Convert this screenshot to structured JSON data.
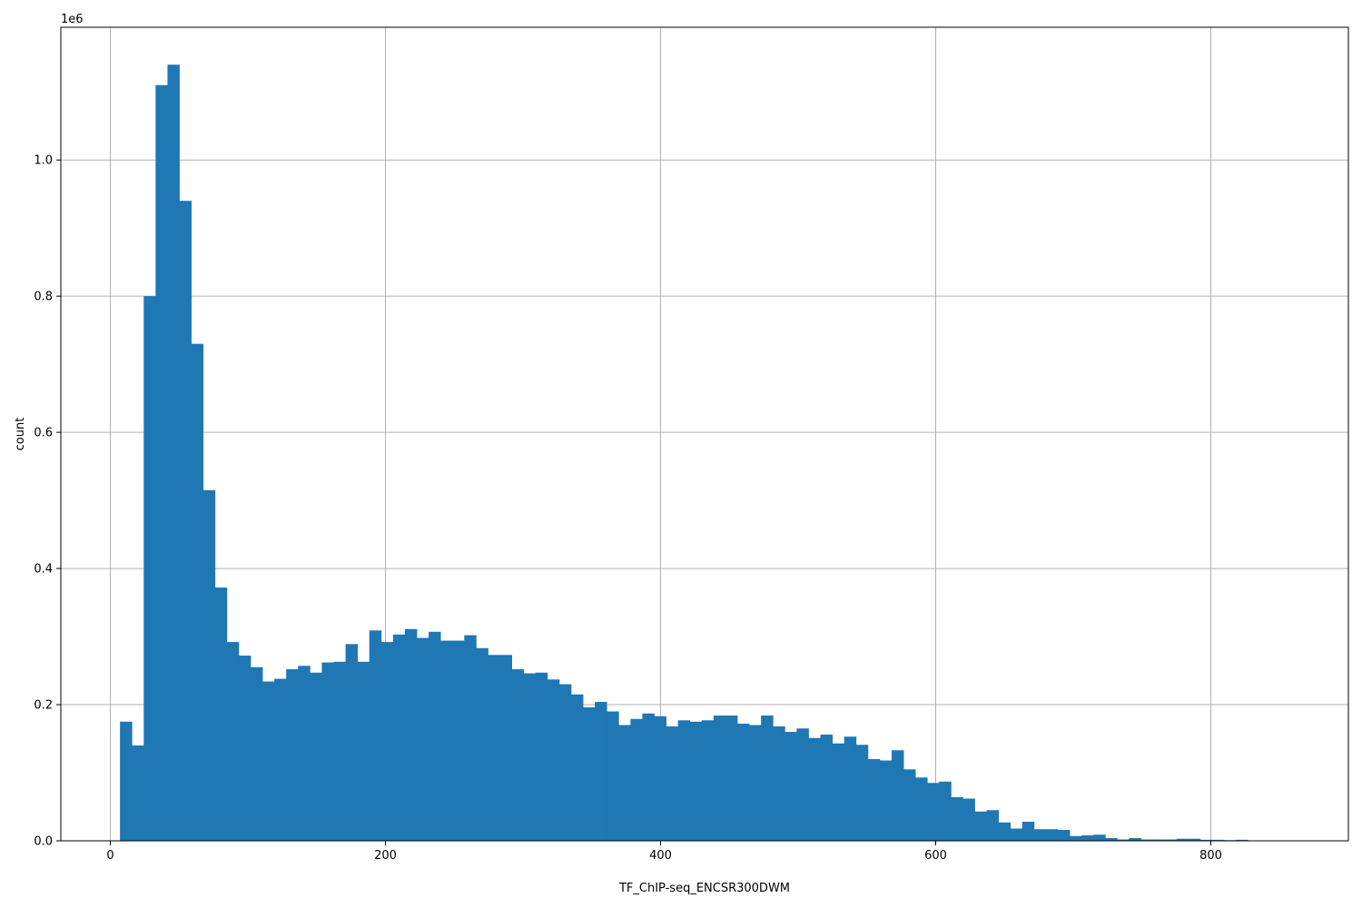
{
  "chart_data": {
    "type": "bar",
    "title": "",
    "xlabel": "TF_ChIP-seq_ENCSR300DWM",
    "ylabel": "count",
    "y_offset_label": "1e6",
    "xlim": [
      -36,
      900
    ],
    "ylim": [
      0,
      1195000
    ],
    "grid": true,
    "bar_color": "#1f77b4",
    "grid_color": "#b0b0b0",
    "x_ticks": [
      0,
      200,
      400,
      600,
      800
    ],
    "x_tick_labels": [
      "0",
      "200",
      "400",
      "600",
      "800"
    ],
    "y_ticks": [
      0,
      200000,
      400000,
      600000,
      800000,
      1000000
    ],
    "y_tick_labels": [
      "0.0",
      "0.2",
      "0.4",
      "0.6",
      "0.8",
      "1.0"
    ],
    "bin_start": 7,
    "bin_width": 8.63,
    "values": [
      175000,
      140000,
      800000,
      1110000,
      1140000,
      940000,
      730000,
      515000,
      372000,
      292000,
      272000,
      255000,
      234000,
      238000,
      252000,
      257000,
      247000,
      262000,
      263000,
      289000,
      263000,
      309000,
      292000,
      303000,
      311000,
      298000,
      307000,
      294000,
      294000,
      302000,
      283000,
      273000,
      273000,
      252000,
      246000,
      247000,
      237000,
      230000,
      215000,
      196000,
      204000,
      190000,
      170000,
      179000,
      187000,
      183000,
      168000,
      177000,
      175000,
      177000,
      184000,
      184000,
      172000,
      170000,
      184000,
      168000,
      160000,
      165000,
      151000,
      156000,
      143000,
      153000,
      141000,
      120000,
      118000,
      133000,
      105000,
      93000,
      85000,
      87000,
      64000,
      62000,
      43000,
      45000,
      27000,
      18000,
      28000,
      17000,
      17000,
      16000,
      7000,
      8000,
      9000,
      4000,
      2000,
      4000,
      2000,
      2000,
      2000,
      3000,
      3000,
      1500,
      1500,
      1000,
      1500,
      500,
      300,
      200,
      100,
      100
    ]
  }
}
